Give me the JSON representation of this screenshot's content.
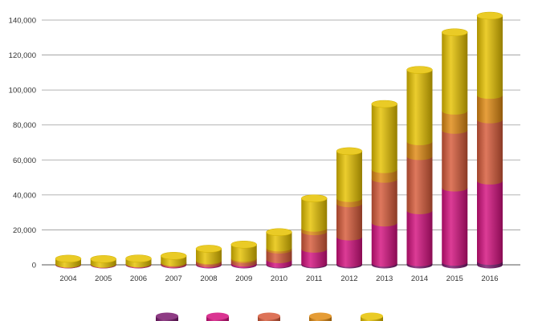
{
  "chart_data": {
    "type": "bar",
    "stacked": true,
    "style": "3d-cylinder",
    "title": "",
    "xlabel": "",
    "ylabel": "",
    "categories": [
      "2004",
      "2005",
      "2006",
      "2007",
      "2008",
      "2009",
      "2010",
      "2011",
      "2012",
      "2013",
      "2014",
      "2015",
      "2016"
    ],
    "ylim": [
      0,
      140000
    ],
    "yticks": [
      0,
      20000,
      40000,
      60000,
      80000,
      100000,
      120000,
      140000
    ],
    "ytick_labels": [
      "0",
      "20,000",
      "40,000",
      "60,000",
      "80,000",
      "100,000",
      "120,000",
      "140,000"
    ],
    "grid": true,
    "legend_position": "bottom",
    "series": [
      {
        "color": "#7a1a6e",
        "values": [
          100,
          100,
          100,
          150,
          200,
          300,
          400,
          600,
          800,
          1000,
          1200,
          1500,
          2000
        ]
      },
      {
        "color": "#d4117f",
        "values": [
          100,
          100,
          200,
          300,
          500,
          800,
          2600,
          8400,
          15200,
          23000,
          29800,
          42500,
          46000
        ]
      },
      {
        "color": "#d75a3a",
        "values": [
          200,
          200,
          300,
          600,
          1300,
          1900,
          5500,
          10000,
          19000,
          25000,
          31000,
          33000,
          35000
        ]
      },
      {
        "color": "#e08a12",
        "values": [
          100,
          100,
          100,
          300,
          500,
          800,
          1200,
          2000,
          3000,
          5500,
          8500,
          11000,
          14000
        ]
      },
      {
        "color": "#e6c200",
        "values": [
          3000,
          2800,
          2900,
          3800,
          6700,
          7800,
          9000,
          17000,
          27000,
          37500,
          41000,
          45000,
          45500
        ]
      }
    ]
  }
}
